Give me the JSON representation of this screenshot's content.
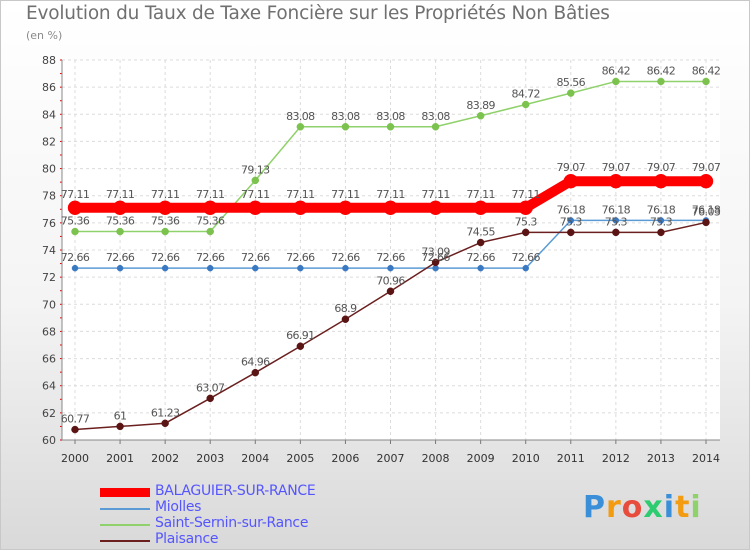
{
  "chart_data": {
    "type": "line",
    "title": "Evolution du Taux de Taxe Foncière sur les Propriétés Non Bâties",
    "unit_label": "(en %)",
    "x": [
      "2000",
      "2001",
      "2002",
      "2003",
      "2004",
      "2005",
      "2006",
      "2007",
      "2008",
      "2009",
      "2010",
      "2011",
      "2012",
      "2013",
      "2014"
    ],
    "ylim": [
      60,
      88
    ],
    "yticks": [
      60,
      62,
      64,
      66,
      68,
      70,
      72,
      74,
      76,
      78,
      80,
      82,
      84,
      86,
      88
    ],
    "grid": true,
    "legend_position": "bottom-left",
    "series": [
      {
        "name": "BALAGUIER-SUR-RANCE",
        "color": "#ff0000",
        "values": [
          77.11,
          77.11,
          77.11,
          77.11,
          77.11,
          77.11,
          77.11,
          77.11,
          77.11,
          77.11,
          77.11,
          79.07,
          79.07,
          79.07,
          79.07
        ],
        "labels": [
          "77.11",
          "77.11",
          "77.11",
          "77.11",
          "77.11",
          "77.11",
          "77.11",
          "77.11",
          "77.11",
          "77.11",
          "77.11",
          "79.07",
          "79.07",
          "79.07",
          "79.07"
        ]
      },
      {
        "name": "Miolles",
        "color": "#5b9bd5",
        "values": [
          72.66,
          72.66,
          72.66,
          72.66,
          72.66,
          72.66,
          72.66,
          72.66,
          72.66,
          72.66,
          72.66,
          76.18,
          76.18,
          76.18,
          76.18
        ],
        "labels": [
          "72.66",
          "72.66",
          "72.66",
          "72.66",
          "72.66",
          "72.66",
          "72.66",
          "72.66",
          "72.66",
          "72.66",
          "72.66",
          "76.18",
          "76.18",
          "76.18",
          "76.18"
        ]
      },
      {
        "name": "Saint-Sernin-sur-Rance",
        "color": "#8fd16a",
        "values": [
          75.36,
          75.36,
          75.36,
          75.36,
          79.13,
          83.08,
          83.08,
          83.08,
          83.08,
          83.89,
          84.72,
          85.56,
          86.42,
          86.42,
          86.42
        ],
        "labels": [
          "75.36",
          "75.36",
          "75.36",
          "75.36",
          "79.13",
          "83.08",
          "83.08",
          "83.08",
          "83.08",
          "83.89",
          "84.72",
          "85.56",
          "86.42",
          "86.42",
          "86.42"
        ]
      },
      {
        "name": "Plaisance",
        "color": "#6b1f1f",
        "values": [
          60.77,
          61,
          61.23,
          63.07,
          64.96,
          66.91,
          68.9,
          70.96,
          73.09,
          74.55,
          75.3,
          75.3,
          75.3,
          75.3,
          76.03
        ],
        "labels": [
          "60.77",
          "61",
          "61.23",
          "63.07",
          "64.96",
          "66.91",
          "68.9",
          "70.96",
          "73.09",
          "74.55",
          "75.3",
          "75.3",
          "75.3",
          "75.3",
          "76.03"
        ]
      }
    ]
  },
  "legend": {
    "items": [
      {
        "label": "BALAGUIER-SUR-RANCE",
        "color": "#ff0000"
      },
      {
        "label": "Miolles",
        "color": "#5b9bd5"
      },
      {
        "label": "Saint-Sernin-sur-Rance",
        "color": "#8fd16a"
      },
      {
        "label": "Plaisance",
        "color": "#6b1f1f"
      }
    ]
  },
  "logo": {
    "letters": [
      "P",
      "r",
      "o",
      "x",
      "i",
      "t",
      "i"
    ],
    "colors": [
      "#3a8fd8",
      "#f39c12",
      "#e74c3c",
      "#2ecc71",
      "#3a8fd8",
      "#f39c12",
      "#8fd16a"
    ]
  }
}
